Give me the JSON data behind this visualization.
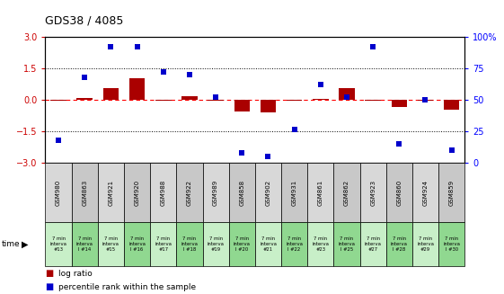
{
  "title": "GDS38 / 4085",
  "samples": [
    "GSM980",
    "GSM863",
    "GSM921",
    "GSM920",
    "GSM988",
    "GSM922",
    "GSM989",
    "GSM858",
    "GSM902",
    "GSM931",
    "GSM861",
    "GSM862",
    "GSM923",
    "GSM860",
    "GSM924",
    "GSM859"
  ],
  "intervals": [
    "#13",
    "I #14",
    "#15",
    "I #16",
    "#17",
    "I #18",
    "#19",
    "I #20",
    "#21",
    "I #22",
    "#23",
    "I #25",
    "#27",
    "I #28",
    "#29",
    "I #30"
  ],
  "log_ratio": [
    -0.05,
    0.08,
    0.55,
    1.05,
    -0.05,
    0.18,
    -0.02,
    -0.55,
    -0.6,
    -0.05,
    0.05,
    0.55,
    -0.02,
    -0.35,
    -0.04,
    -0.45
  ],
  "percentile": [
    18,
    68,
    92,
    92,
    72,
    70,
    52,
    8,
    5,
    27,
    62,
    52,
    92,
    15,
    50,
    10
  ],
  "bar_color": "#aa0000",
  "dot_color": "#0000cc",
  "bg_color_light": "#d8d8d8",
  "bg_color_dark": "#c8c8c8",
  "time_bg_light": "#c8efc8",
  "time_bg_dark": "#90d890",
  "ylim_left": [
    -3,
    3
  ],
  "ylim_right": [
    0,
    100
  ],
  "yticks_left": [
    -3,
    -1.5,
    0,
    1.5,
    3
  ],
  "yticks_right": [
    0,
    25,
    50,
    75,
    100
  ],
  "hline_dotted": [
    1.5,
    -1.5
  ],
  "legend_red": "log ratio",
  "legend_blue": "percentile rank within the sample"
}
